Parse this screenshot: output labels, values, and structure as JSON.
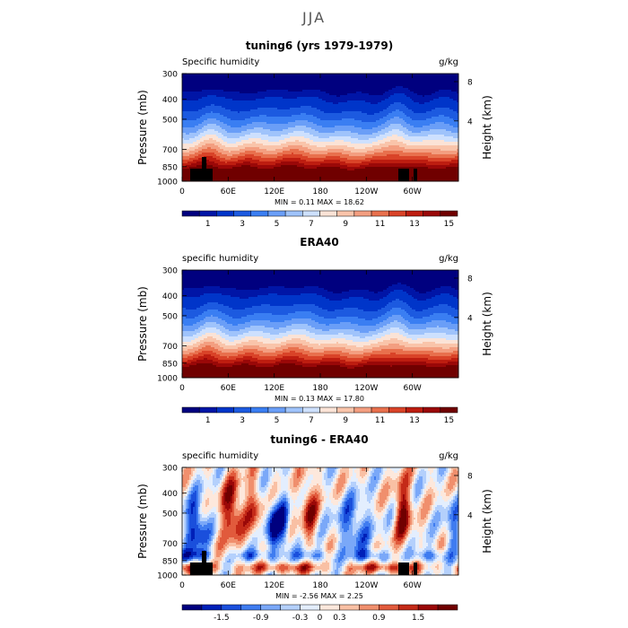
{
  "page_title": "JJA",
  "chart_data": [
    {
      "type": "heatmap",
      "title": "tuning6 (yrs 1979-1979)",
      "left_label": "Specific humidity",
      "right_label": "g/kg",
      "ylabel": "Pressure (mb)",
      "ylabel_right": "Height (km)",
      "x_ticks": [
        "0",
        "60E",
        "120E",
        "180",
        "120W",
        "60W"
      ],
      "y_ticks": [
        "300",
        "400",
        "500",
        "700",
        "850",
        "1000"
      ],
      "height_ticks": [
        "8",
        "4"
      ],
      "min_max_text": "MIN =     0.11   MAX =    18.62",
      "min": 0.11,
      "max": 18.62,
      "colorbar_labels": [
        "1",
        "3",
        "5",
        "7",
        "9",
        "11",
        "13",
        "15"
      ],
      "colorbar_colors": [
        "#00007f",
        "#0015a6",
        "#0035c9",
        "#1c5ae0",
        "#3a7ef2",
        "#6a9ef7",
        "#9fc3fb",
        "#cde0fe",
        "#fbe3d6",
        "#f9c4aa",
        "#f39e80",
        "#e8704d",
        "#d94328",
        "#bd1d10",
        "#9a0808",
        "#700000"
      ],
      "levels_mb": [
        300,
        400,
        500,
        700,
        850,
        1000
      ]
    },
    {
      "type": "heatmap",
      "title": "ERA40",
      "left_label": "specific humidity",
      "right_label": "g/kg",
      "ylabel": "Pressure (mb)",
      "ylabel_right": "Height (km)",
      "x_ticks": [
        "0",
        "60E",
        "120E",
        "180",
        "120W",
        "60W"
      ],
      "y_ticks": [
        "300",
        "400",
        "500",
        "700",
        "850",
        "1000"
      ],
      "height_ticks": [
        "8",
        "4"
      ],
      "min_max_text": "MIN =     0.13   MAX =    17.80",
      "min": 0.13,
      "max": 17.8,
      "colorbar_labels": [
        "1",
        "3",
        "5",
        "7",
        "9",
        "11",
        "13",
        "15"
      ],
      "colorbar_colors": [
        "#00007f",
        "#0015a6",
        "#0035c9",
        "#1c5ae0",
        "#3a7ef2",
        "#6a9ef7",
        "#9fc3fb",
        "#cde0fe",
        "#fbe3d6",
        "#f9c4aa",
        "#f39e80",
        "#e8704d",
        "#d94328",
        "#bd1d10",
        "#9a0808",
        "#700000"
      ],
      "levels_mb": [
        300,
        400,
        500,
        700,
        850,
        1000
      ]
    },
    {
      "type": "heatmap",
      "title": "tuning6 - ERA40",
      "left_label": "specific humidity",
      "right_label": "g/kg",
      "ylabel": "Pressure (mb)",
      "ylabel_right": "Height (km)",
      "x_ticks": [
        "0",
        "60E",
        "120E",
        "180",
        "120W",
        "60W"
      ],
      "y_ticks": [
        "300",
        "400",
        "500",
        "700",
        "850",
        "1000"
      ],
      "height_ticks": [
        "8",
        "4"
      ],
      "min_max_text": "MIN =    -2.56   MAX =    2.25",
      "min": -2.56,
      "max": 2.25,
      "colorbar_labels": [
        "-1.5",
        "-0.9",
        "-0.3",
        "0",
        "0.3",
        "0.9",
        "1.5"
      ],
      "colorbar_colors": [
        "#00007f",
        "#0020b8",
        "#1a4fdc",
        "#3f7cf0",
        "#7aa8f8",
        "#b4d0fc",
        "#e3eefe",
        "#fde8dc",
        "#f9c0a4",
        "#f08f6d",
        "#e15a3c",
        "#c42a18",
        "#9a0808",
        "#700000"
      ],
      "levels_mb": [
        300,
        400,
        500,
        700,
        850,
        1000
      ]
    }
  ]
}
